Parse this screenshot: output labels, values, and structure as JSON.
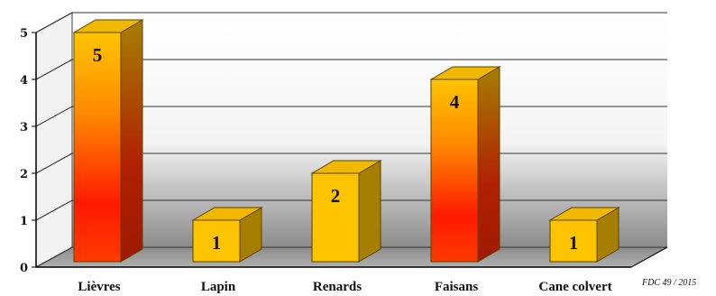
{
  "chart_data": {
    "type": "bar",
    "title": "",
    "xlabel": "",
    "ylabel": "",
    "categories": [
      "Lièvres",
      "Lapin",
      "Renards",
      "Faisans",
      "Cane colvert"
    ],
    "values": [
      5,
      1,
      2,
      4,
      1
    ],
    "ylim": [
      0,
      5
    ],
    "yticks": [
      0,
      1,
      2,
      3,
      4,
      5
    ],
    "grid": true,
    "legend": "none",
    "style": "3d",
    "credit": "FDC 49 / 2015",
    "colors": {
      "bar_front": "#ffc400",
      "bar_top": "#f0b800",
      "bar_side": "#a77f00",
      "bar_highlight": "#ff1a00",
      "floor": "#9a9a9a",
      "wall_top": "#ffffff",
      "wall_bottom": "#8c8c8c",
      "grid": "#333333"
    }
  }
}
